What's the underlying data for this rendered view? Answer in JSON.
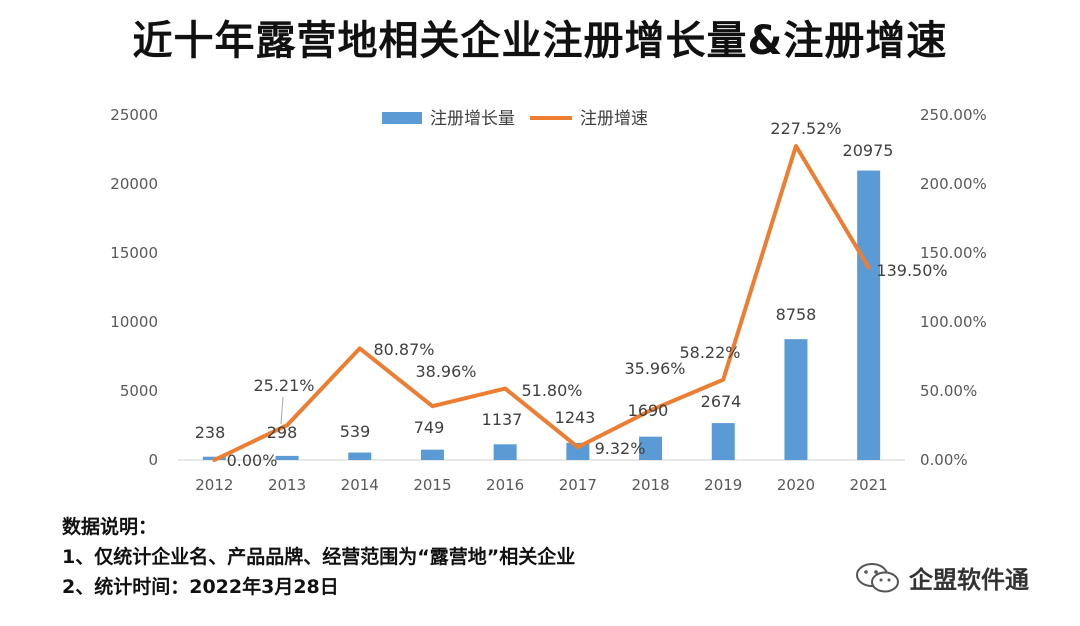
{
  "title": "近十年露营地相关企业注册增长量&注册增速",
  "chart_data": {
    "type": "bar+line",
    "categories": [
      "2012",
      "2013",
      "2014",
      "2015",
      "2016",
      "2017",
      "2018",
      "2019",
      "2020",
      "2021"
    ],
    "series": [
      {
        "name": "注册增长量",
        "type": "bar",
        "axis": "left",
        "color": "#5B9BD5",
        "values": [
          238,
          298,
          539,
          749,
          1137,
          1243,
          1690,
          2674,
          8758,
          20975
        ],
        "labels": [
          "238",
          "298",
          "539",
          "749",
          "1137",
          "1243",
          "1690",
          "2674",
          "8758",
          "20975"
        ]
      },
      {
        "name": "注册增速",
        "type": "line",
        "axis": "right",
        "color": "#ED7D31",
        "values": [
          0.0,
          25.21,
          80.87,
          38.96,
          51.8,
          9.32,
          35.96,
          58.22,
          227.52,
          139.5
        ],
        "labels": [
          "0.00%",
          "25.21%",
          "80.87%",
          "38.96%",
          "51.80%",
          "9.32%",
          "35.96%",
          "58.22%",
          "227.52%",
          "139.50%"
        ]
      }
    ],
    "y_left": {
      "min": 0,
      "max": 25000,
      "ticks": [
        "0",
        "5000",
        "10000",
        "15000",
        "20000",
        "25000"
      ]
    },
    "y_right": {
      "min": 0,
      "max": 250,
      "ticks": [
        "0.00%",
        "50.00%",
        "100.00%",
        "150.00%",
        "200.00%",
        "250.00%"
      ]
    },
    "legend": {
      "position": "top-center"
    },
    "grid": false
  },
  "notes": {
    "heading": "数据说明：",
    "line1": "1、仅统计企业名、产品品牌、经营范围为“露营地”相关企业",
    "line2": "2、统计时间：2022年3月28日"
  },
  "brand": {
    "name": "企盟软件通",
    "icon": "wechat-icon"
  }
}
